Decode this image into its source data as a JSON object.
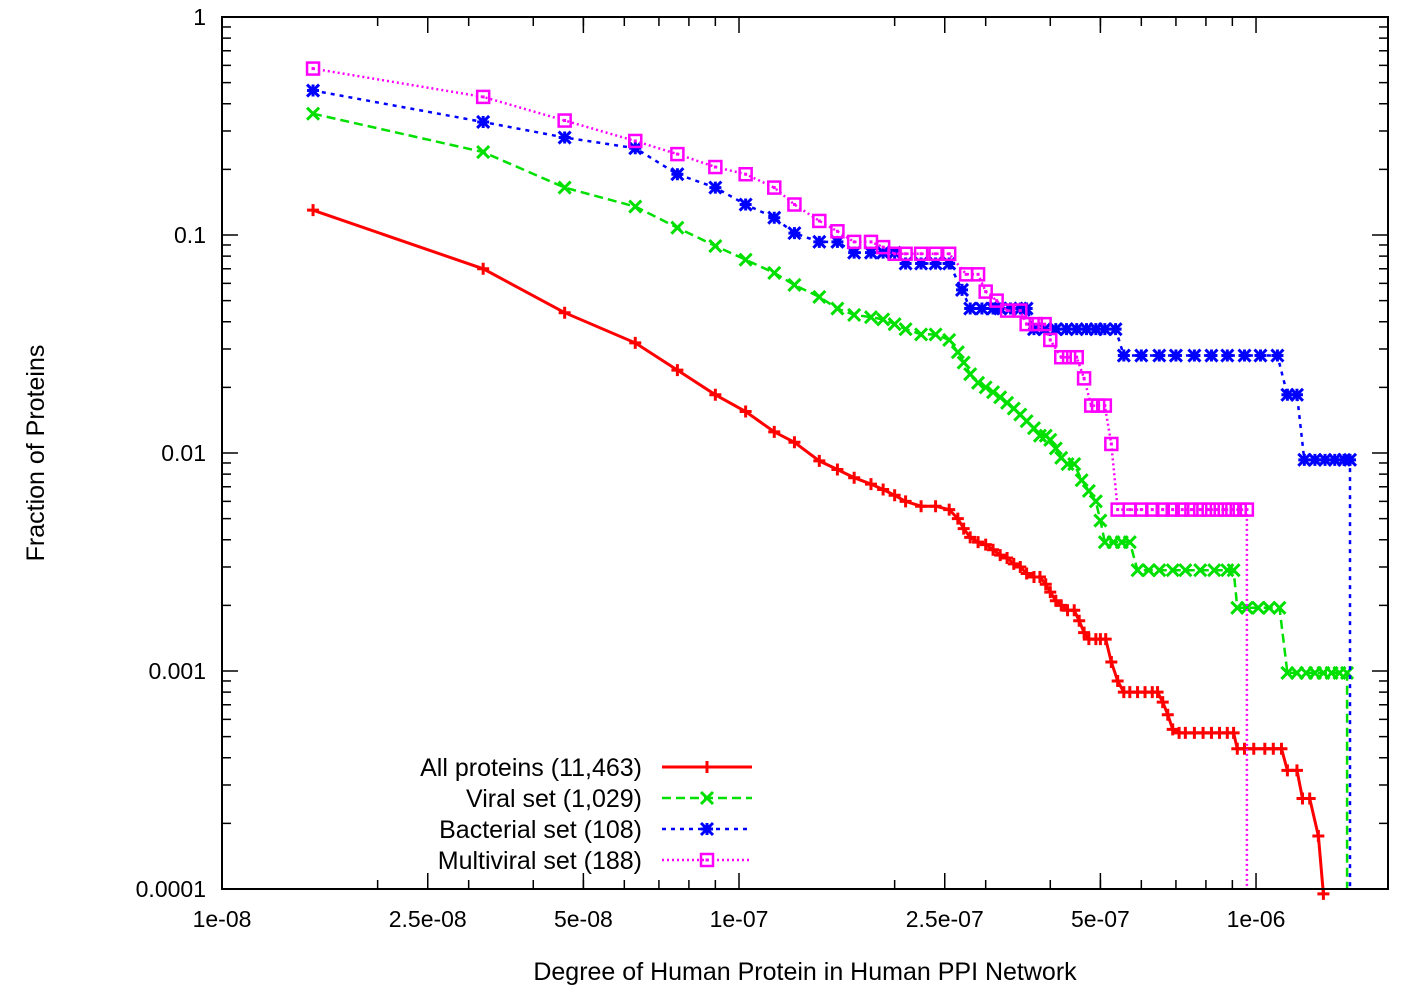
{
  "chart_data": {
    "type": "line",
    "xlabel": "Degree of Human Protein in Human PPI Network",
    "ylabel": "Fraction of Proteins",
    "x_scale": "log",
    "y_scale": "log",
    "xlim": [
      1e-08,
      1.8e-06
    ],
    "ylim": [
      0.0001,
      1
    ],
    "x_ticks": [
      {
        "value": 1e-08,
        "label": "1e-08"
      },
      {
        "value": 2.5e-08,
        "label": "2.5e-08"
      },
      {
        "value": 5e-08,
        "label": "5e-08"
      },
      {
        "value": 1e-07,
        "label": "1e-07"
      },
      {
        "value": 2.5e-07,
        "label": "2.5e-07"
      },
      {
        "value": 5e-07,
        "label": "5e-07"
      },
      {
        "value": 1e-06,
        "label": "1e-06"
      }
    ],
    "y_ticks": [
      {
        "value": 1,
        "label": "1"
      },
      {
        "value": 0.1,
        "label": "0.1"
      },
      {
        "value": 0.01,
        "label": "0.01"
      },
      {
        "value": 0.001,
        "label": "0.001"
      },
      {
        "value": 0.0001,
        "label": "0.0001"
      }
    ],
    "grid": false,
    "legend_position": "bottom-left",
    "series": [
      {
        "name": "All proteins (11,463)",
        "color": "#ff0000",
        "marker": "plus",
        "dash": "solid",
        "points": [
          [
            1.5e-08,
            0.13
          ],
          [
            3.2e-08,
            0.07
          ],
          [
            4.6e-08,
            0.044
          ],
          [
            6.3e-08,
            0.032
          ],
          [
            7.6e-08,
            0.024
          ],
          [
            9e-08,
            0.0185
          ],
          [
            1.03e-07,
            0.0155
          ],
          [
            1.17e-07,
            0.0125
          ],
          [
            1.28e-07,
            0.0112
          ],
          [
            1.43e-07,
            0.0092
          ],
          [
            1.55e-07,
            0.0084
          ],
          [
            1.67e-07,
            0.0077
          ],
          [
            1.8e-07,
            0.0072
          ],
          [
            1.9e-07,
            0.0068
          ],
          [
            2e-07,
            0.0064
          ],
          [
            2.1e-07,
            0.006
          ],
          [
            2.25e-07,
            0.0057
          ],
          [
            2.4e-07,
            0.0057
          ],
          [
            2.55e-07,
            0.0055
          ],
          [
            2.65e-07,
            0.005
          ],
          [
            2.72e-07,
            0.0045
          ],
          [
            2.8e-07,
            0.0041
          ],
          [
            2.9e-07,
            0.0039
          ],
          [
            3e-07,
            0.0038
          ],
          [
            3.1e-07,
            0.0036
          ],
          [
            3.2e-07,
            0.0034
          ],
          [
            3.3e-07,
            0.0033
          ],
          [
            3.4e-07,
            0.0031
          ],
          [
            3.5e-07,
            0.003
          ],
          [
            3.6e-07,
            0.0028
          ],
          [
            3.72e-07,
            0.0027
          ],
          [
            3.82e-07,
            0.0027
          ],
          [
            3.92e-07,
            0.0025
          ],
          [
            4e-07,
            0.0023
          ],
          [
            4.1e-07,
            0.0021
          ],
          [
            4.2e-07,
            0.002
          ],
          [
            4.32e-07,
            0.0019
          ],
          [
            4.45e-07,
            0.0019
          ],
          [
            4.55e-07,
            0.0017
          ],
          [
            4.65e-07,
            0.0015
          ],
          [
            4.75e-07,
            0.0014
          ],
          [
            4.9e-07,
            0.0014
          ],
          [
            5e-07,
            0.0014
          ],
          [
            5.12e-07,
            0.0014
          ],
          [
            5.25e-07,
            0.0011
          ],
          [
            5.4e-07,
            0.0009
          ],
          [
            5.55e-07,
            0.0008
          ],
          [
            5.7e-07,
            0.0008
          ],
          [
            5.9e-07,
            0.0008
          ],
          [
            6.1e-07,
            0.0008
          ],
          [
            6.3e-07,
            0.0008
          ],
          [
            6.45e-07,
            0.0008
          ],
          [
            6.6e-07,
            0.00072
          ],
          [
            6.75e-07,
            0.00063
          ],
          [
            6.9e-07,
            0.00054
          ],
          [
            7.1e-07,
            0.00052
          ],
          [
            7.3e-07,
            0.00052
          ],
          [
            7.6e-07,
            0.00052
          ],
          [
            7.9e-07,
            0.00052
          ],
          [
            8.2e-07,
            0.00052
          ],
          [
            8.5e-07,
            0.00052
          ],
          [
            8.8e-07,
            0.00052
          ],
          [
            9.05e-07,
            0.00052
          ],
          [
            9.2e-07,
            0.00044
          ],
          [
            9.5e-07,
            0.00044
          ],
          [
            9.9e-07,
            0.00044
          ],
          [
            1.04e-06,
            0.00044
          ],
          [
            1.08e-06,
            0.00044
          ],
          [
            1.12e-06,
            0.00044
          ],
          [
            1.15e-06,
            0.00035
          ],
          [
            1.2e-06,
            0.00035
          ],
          [
            1.23e-06,
            0.00026
          ],
          [
            1.27e-06,
            0.00026
          ],
          [
            1.32e-06,
            0.000175
          ],
          [
            1.35e-06,
            9.5e-05
          ]
        ]
      },
      {
        "name": "Viral set (1,029)",
        "color": "#00e000",
        "marker": "cross",
        "dash": "dashed",
        "points": [
          [
            1.5e-08,
            0.36
          ],
          [
            3.2e-08,
            0.24
          ],
          [
            4.6e-08,
            0.165
          ],
          [
            6.3e-08,
            0.135
          ],
          [
            7.6e-08,
            0.108
          ],
          [
            9e-08,
            0.089
          ],
          [
            1.03e-07,
            0.077
          ],
          [
            1.17e-07,
            0.067
          ],
          [
            1.28e-07,
            0.059
          ],
          [
            1.43e-07,
            0.052
          ],
          [
            1.55e-07,
            0.046
          ],
          [
            1.67e-07,
            0.043
          ],
          [
            1.8e-07,
            0.042
          ],
          [
            1.9e-07,
            0.041
          ],
          [
            2e-07,
            0.039
          ],
          [
            2.1e-07,
            0.037
          ],
          [
            2.25e-07,
            0.035
          ],
          [
            2.4e-07,
            0.035
          ],
          [
            2.55e-07,
            0.033
          ],
          [
            2.65e-07,
            0.029
          ],
          [
            2.72e-07,
            0.026
          ],
          [
            2.8e-07,
            0.023
          ],
          [
            2.9e-07,
            0.021
          ],
          [
            3e-07,
            0.02
          ],
          [
            3.1e-07,
            0.019
          ],
          [
            3.2e-07,
            0.018
          ],
          [
            3.3e-07,
            0.017
          ],
          [
            3.4e-07,
            0.016
          ],
          [
            3.5e-07,
            0.015
          ],
          [
            3.6e-07,
            0.014
          ],
          [
            3.72e-07,
            0.013
          ],
          [
            3.82e-07,
            0.012
          ],
          [
            3.92e-07,
            0.012
          ],
          [
            4e-07,
            0.0115
          ],
          [
            4.1e-07,
            0.0105
          ],
          [
            4.2e-07,
            0.0095
          ],
          [
            4.32e-07,
            0.0089
          ],
          [
            4.45e-07,
            0.0089
          ],
          [
            4.6e-07,
            0.0075
          ],
          [
            4.75e-07,
            0.0067
          ],
          [
            4.9e-07,
            0.006
          ],
          [
            5e-07,
            0.0049
          ],
          [
            5.1e-07,
            0.0039
          ],
          [
            5.3e-07,
            0.0039
          ],
          [
            5.5e-07,
            0.0039
          ],
          [
            5.7e-07,
            0.0039
          ],
          [
            5.9e-07,
            0.0029
          ],
          [
            6.2e-07,
            0.0029
          ],
          [
            6.5e-07,
            0.0029
          ],
          [
            6.9e-07,
            0.0029
          ],
          [
            7.3e-07,
            0.0029
          ],
          [
            7.8e-07,
            0.0029
          ],
          [
            8.3e-07,
            0.0029
          ],
          [
            8.8e-07,
            0.0029
          ],
          [
            9.05e-07,
            0.0029
          ],
          [
            9.2e-07,
            0.00195
          ],
          [
            9.6e-07,
            0.00195
          ],
          [
            1.01e-06,
            0.00195
          ],
          [
            1.06e-06,
            0.00195
          ],
          [
            1.11e-06,
            0.00195
          ],
          [
            1.15e-06,
            0.00098
          ],
          [
            1.2e-06,
            0.00098
          ],
          [
            1.25e-06,
            0.00098
          ],
          [
            1.3e-06,
            0.00098
          ],
          [
            1.35e-06,
            0.00098
          ],
          [
            1.4e-06,
            0.00098
          ],
          [
            1.45e-06,
            0.00098
          ],
          [
            1.5e-06,
            0.00098
          ]
        ]
      },
      {
        "name": "Bacterial set (108)",
        "color": "#0000ff",
        "marker": "star",
        "dash": "dotted",
        "points": [
          [
            1.5e-08,
            0.46
          ],
          [
            3.2e-08,
            0.33
          ],
          [
            4.6e-08,
            0.28
          ],
          [
            6.3e-08,
            0.25
          ],
          [
            7.6e-08,
            0.19
          ],
          [
            9e-08,
            0.165
          ],
          [
            1.03e-07,
            0.138
          ],
          [
            1.17e-07,
            0.12
          ],
          [
            1.28e-07,
            0.102
          ],
          [
            1.43e-07,
            0.093
          ],
          [
            1.55e-07,
            0.093
          ],
          [
            1.67e-07,
            0.083
          ],
          [
            1.8e-07,
            0.083
          ],
          [
            1.9e-07,
            0.083
          ],
          [
            2e-07,
            0.083
          ],
          [
            2.1e-07,
            0.074
          ],
          [
            2.25e-07,
            0.074
          ],
          [
            2.4e-07,
            0.074
          ],
          [
            2.55e-07,
            0.074
          ],
          [
            2.7e-07,
            0.056
          ],
          [
            2.8e-07,
            0.046
          ],
          [
            2.95e-07,
            0.046
          ],
          [
            3.1e-07,
            0.046
          ],
          [
            3.2e-07,
            0.046
          ],
          [
            3.35e-07,
            0.046
          ],
          [
            3.5e-07,
            0.046
          ],
          [
            3.6e-07,
            0.046
          ],
          [
            3.72e-07,
            0.037
          ],
          [
            3.9e-07,
            0.037
          ],
          [
            4.1e-07,
            0.037
          ],
          [
            4.3e-07,
            0.037
          ],
          [
            4.5e-07,
            0.037
          ],
          [
            4.7e-07,
            0.037
          ],
          [
            4.9e-07,
            0.037
          ],
          [
            5.1e-07,
            0.037
          ],
          [
            5.35e-07,
            0.037
          ],
          [
            5.55e-07,
            0.028
          ],
          [
            6e-07,
            0.028
          ],
          [
            6.5e-07,
            0.028
          ],
          [
            7e-07,
            0.028
          ],
          [
            7.6e-07,
            0.028
          ],
          [
            8.2e-07,
            0.028
          ],
          [
            8.8e-07,
            0.028
          ],
          [
            9.5e-07,
            0.028
          ],
          [
            1.02e-06,
            0.028
          ],
          [
            1.1e-06,
            0.028
          ],
          [
            1.15e-06,
            0.0185
          ],
          [
            1.2e-06,
            0.0185
          ],
          [
            1.24e-06,
            0.0093
          ],
          [
            1.3e-06,
            0.0093
          ],
          [
            1.36e-06,
            0.0093
          ],
          [
            1.42e-06,
            0.0093
          ],
          [
            1.48e-06,
            0.0093
          ],
          [
            1.52e-06,
            0.0093
          ]
        ]
      },
      {
        "name": "Multiviral set (188)",
        "color": "#ff00ff",
        "marker": "square",
        "dash": "dotted-fine",
        "points": [
          [
            1.5e-08,
            0.58
          ],
          [
            3.2e-08,
            0.43
          ],
          [
            4.6e-08,
            0.335
          ],
          [
            6.3e-08,
            0.27
          ],
          [
            7.6e-08,
            0.235
          ],
          [
            9e-08,
            0.205
          ],
          [
            1.03e-07,
            0.19
          ],
          [
            1.17e-07,
            0.165
          ],
          [
            1.28e-07,
            0.138
          ],
          [
            1.43e-07,
            0.116
          ],
          [
            1.55e-07,
            0.104
          ],
          [
            1.67e-07,
            0.093
          ],
          [
            1.8e-07,
            0.093
          ],
          [
            1.9e-07,
            0.088
          ],
          [
            2e-07,
            0.082
          ],
          [
            2.1e-07,
            0.082
          ],
          [
            2.25e-07,
            0.082
          ],
          [
            2.4e-07,
            0.082
          ],
          [
            2.55e-07,
            0.082
          ],
          [
            2.75e-07,
            0.066
          ],
          [
            2.9e-07,
            0.066
          ],
          [
            3e-07,
            0.055
          ],
          [
            3.15e-07,
            0.05
          ],
          [
            3.3e-07,
            0.045
          ],
          [
            3.5e-07,
            0.045
          ],
          [
            3.6e-07,
            0.039
          ],
          [
            3.75e-07,
            0.039
          ],
          [
            3.9e-07,
            0.039
          ],
          [
            4e-07,
            0.033
          ],
          [
            4.2e-07,
            0.0275
          ],
          [
            4.35e-07,
            0.0275
          ],
          [
            4.5e-07,
            0.0275
          ],
          [
            4.65e-07,
            0.022
          ],
          [
            4.8e-07,
            0.0165
          ],
          [
            4.95e-07,
            0.0165
          ],
          [
            5.1e-07,
            0.0165
          ],
          [
            5.25e-07,
            0.011
          ],
          [
            5.4e-07,
            0.0055
          ],
          [
            5.7e-07,
            0.0055
          ],
          [
            6e-07,
            0.0055
          ],
          [
            6.3e-07,
            0.0055
          ],
          [
            6.6e-07,
            0.0055
          ],
          [
            6.9e-07,
            0.0055
          ],
          [
            7.2e-07,
            0.0055
          ],
          [
            7.5e-07,
            0.0055
          ],
          [
            7.8e-07,
            0.0055
          ],
          [
            8.1e-07,
            0.0055
          ],
          [
            8.4e-07,
            0.0055
          ],
          [
            8.7e-07,
            0.0055
          ],
          [
            9e-07,
            0.0055
          ],
          [
            9.3e-07,
            0.0055
          ],
          [
            9.6e-07,
            0.0055
          ]
        ]
      }
    ]
  }
}
